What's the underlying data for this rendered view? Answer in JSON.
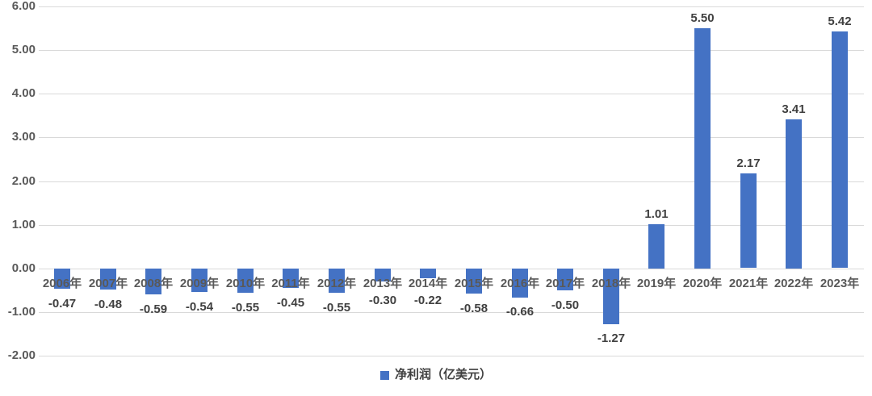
{
  "chart_data": {
    "type": "bar",
    "title": "",
    "xlabel": "",
    "ylabel": "",
    "legend": "净利润（亿美元）",
    "legend_position": "bottom-center",
    "categories": [
      "2006年",
      "2007年",
      "2008年",
      "2009年",
      "2010年",
      "2011年",
      "2012年",
      "2013年",
      "2014年",
      "2015年",
      "2016年",
      "2017年",
      "2018年",
      "2019年",
      "2020年",
      "2021年",
      "2022年",
      "2023年"
    ],
    "values": [
      -0.47,
      -0.48,
      -0.59,
      -0.54,
      -0.55,
      -0.45,
      -0.55,
      -0.3,
      -0.22,
      -0.58,
      -0.66,
      -0.5,
      -1.27,
      1.01,
      5.5,
      2.17,
      3.41,
      5.42
    ],
    "value_labels": [
      "-0.47",
      "-0.48",
      "-0.59",
      "-0.54",
      "-0.55",
      "-0.45",
      "-0.55",
      "-0.30",
      "-0.22",
      "-0.58",
      "-0.66",
      "-0.50",
      "-1.27",
      "1.01",
      "5.50",
      "2.17",
      "3.41",
      "5.42"
    ],
    "ylim": [
      -2,
      6
    ],
    "y_tick_values": [
      6,
      5,
      4,
      3,
      2,
      1,
      0,
      -1,
      -2
    ],
    "y_tick_labels": [
      "6.00",
      "5.00",
      "4.00",
      "3.00",
      "2.00",
      "1.00",
      "0.00",
      "-1.00",
      "-2.00"
    ],
    "grid": true,
    "colors": {
      "bar": "#4472C4",
      "gridline": "#D9D9D9",
      "axis_text": "#595959",
      "data_label_text": "#404040",
      "background": "#FFFFFF"
    }
  }
}
